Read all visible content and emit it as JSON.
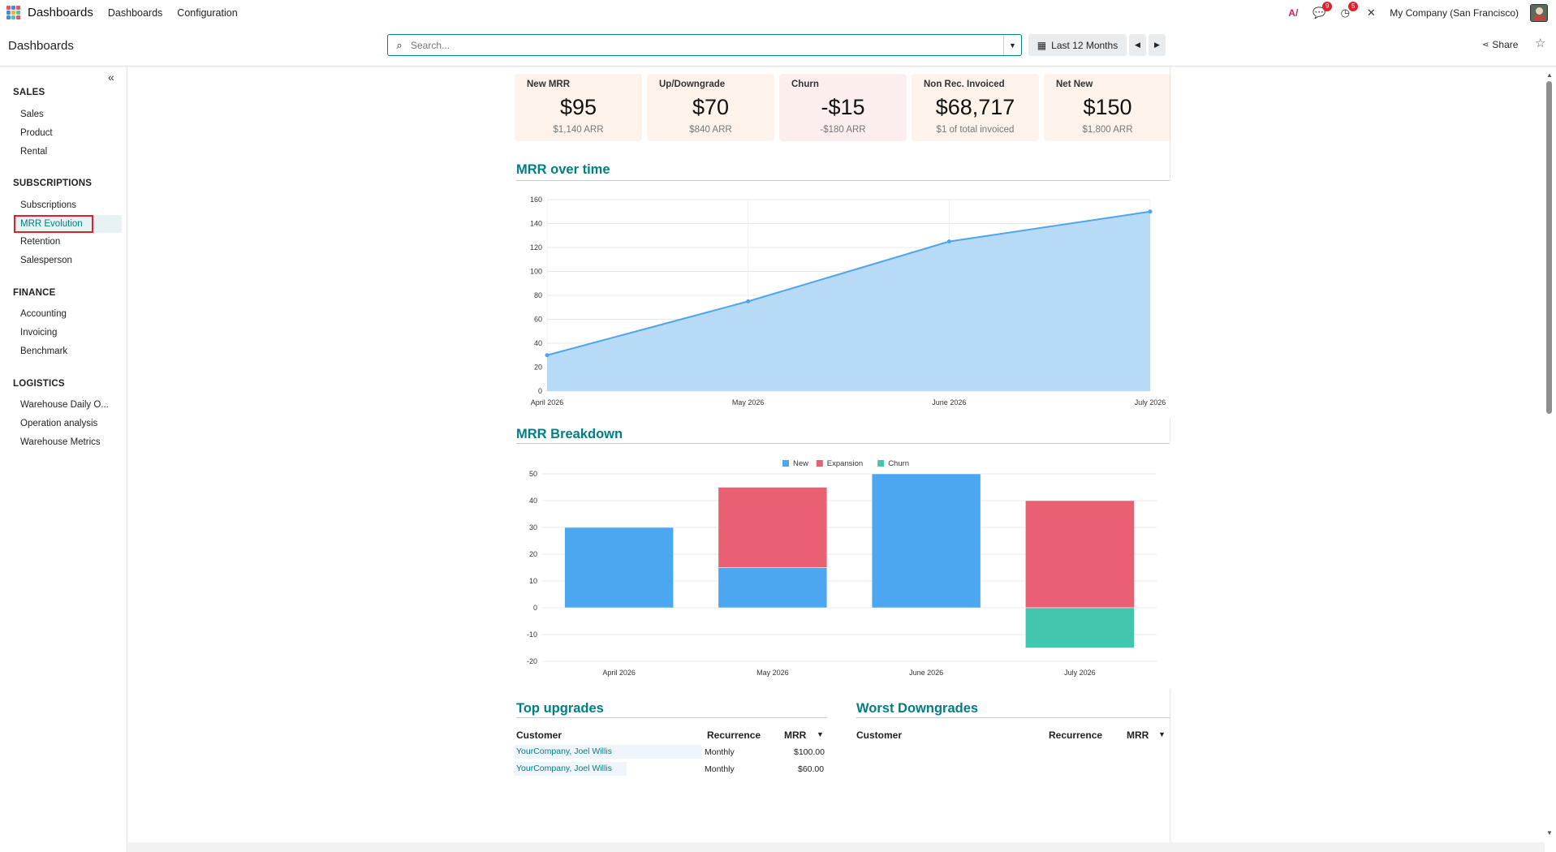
{
  "topbar": {
    "app_name": "Dashboards",
    "menu": [
      "Dashboards",
      "Configuration"
    ],
    "messages_count": "9",
    "activities_count": "5",
    "company": "My Company (San Francisco)"
  },
  "control": {
    "breadcrumb": "Dashboards",
    "search_placeholder": "Search...",
    "date_filter": "Last 12 Months",
    "share_label": "Share"
  },
  "sidebar": {
    "sections": [
      {
        "title": "SALES",
        "items": [
          "Sales",
          "Product",
          "Rental"
        ]
      },
      {
        "title": "SUBSCRIPTIONS",
        "items": [
          "MRR Evolution",
          "Subscriptions",
          "Retention",
          "Salesperson"
        ]
      },
      {
        "title": "FINANCE",
        "items": [
          "Accounting",
          "Invoicing",
          "Benchmark"
        ]
      },
      {
        "title": "LOGISTICS",
        "items": [
          "Warehouse Daily O...",
          "Operation analysis",
          "Warehouse Metrics"
        ]
      }
    ],
    "active_item": "MRR Evolution"
  },
  "kpis": [
    {
      "label": "New MRR",
      "value": "$95",
      "sub": "$1,140 ARR",
      "color": "#fdf3ea"
    },
    {
      "label": "Up/Downgrade",
      "value": "$70",
      "sub": "$840 ARR",
      "color": "#fdf3ea"
    },
    {
      "label": "Churn",
      "value": "-$15",
      "sub": "-$180 ARR",
      "color": "#fdeeee"
    },
    {
      "label": "Non Rec. Invoiced",
      "value": "$68,717",
      "sub": "$1 of total invoiced",
      "color": "#fdf3ea"
    },
    {
      "label": "Net New",
      "value": "$150",
      "sub": "$1,800 ARR",
      "color": "#fdf3ea"
    }
  ],
  "sections": {
    "mrr_over_time": "MRR over time",
    "mrr_breakdown": "MRR Breakdown",
    "top_upgrades": "Top upgrades",
    "worst_downgrades": "Worst Downgrades"
  },
  "chart_data": [
    {
      "type": "area",
      "title": "MRR over time",
      "x": [
        "April 2026",
        "May 2026",
        "June 2026",
        "July 2026"
      ],
      "series": [
        {
          "values": [
            30,
            75,
            125,
            150
          ],
          "color": "#4ea5ef"
        }
      ],
      "yticks": [
        0,
        20,
        40,
        60,
        80,
        100,
        120,
        140,
        160
      ],
      "ylim": [
        0,
        160
      ],
      "grid": true
    },
    {
      "type": "bar",
      "stacked": true,
      "title": "MRR Breakdown",
      "categories": [
        "April 2026",
        "May 2026",
        "June 2026",
        "July 2026"
      ],
      "series": [
        {
          "name": "New",
          "values": [
            30,
            15,
            50,
            0
          ],
          "color": "#4da7f0"
        },
        {
          "name": "Expansion",
          "values": [
            0,
            30,
            0,
            40
          ],
          "color": "#e96072"
        },
        {
          "name": "Churn",
          "values": [
            0,
            0,
            0,
            -15
          ],
          "color": "#43c6ad"
        }
      ],
      "yticks": [
        -20,
        -10,
        0,
        10,
        20,
        30,
        40,
        50
      ],
      "ylim": [
        -20,
        50
      ],
      "legend": "top-center",
      "grid": true
    }
  ],
  "top_upgrades": {
    "headers": [
      "Customer",
      "Recurrence",
      "MRR"
    ],
    "rows": [
      [
        "YourCompany, Joel Willis",
        "Monthly",
        "$100.00"
      ],
      [
        "YourCompany, Joel Willis",
        "Monthly",
        "$60.00"
      ]
    ]
  },
  "worst_downgrades": {
    "headers": [
      "Customer",
      "Recurrence",
      "MRR"
    ],
    "rows": []
  }
}
